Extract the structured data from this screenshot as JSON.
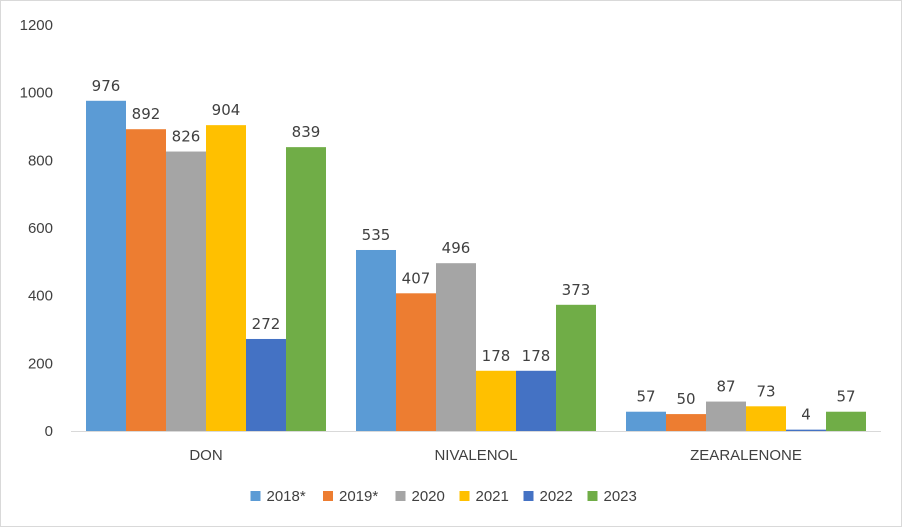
{
  "chart_data": {
    "type": "bar",
    "categories": [
      "DON",
      "NIVALENOL",
      "ZEARALENONE"
    ],
    "series": [
      {
        "name": "2018*",
        "color": "#5b9bd5",
        "values": [
          976,
          535,
          57
        ]
      },
      {
        "name": "2019*",
        "color": "#ed7d31",
        "values": [
          892,
          407,
          50
        ]
      },
      {
        "name": "2020",
        "color": "#a5a5a5",
        "values": [
          826,
          496,
          87
        ]
      },
      {
        "name": "2021",
        "color": "#ffc000",
        "values": [
          904,
          178,
          73
        ]
      },
      {
        "name": "2022",
        "color": "#4472c4",
        "values": [
          272,
          178,
          4
        ]
      },
      {
        "name": "2023",
        "color": "#70ad47",
        "values": [
          839,
          373,
          57
        ]
      }
    ],
    "title": "",
    "xlabel": "",
    "ylabel": "",
    "ylim": [
      0,
      1200
    ],
    "yticks": [
      0,
      200,
      400,
      600,
      800,
      1000,
      1200
    ],
    "grid": false,
    "legend": "bottom"
  }
}
